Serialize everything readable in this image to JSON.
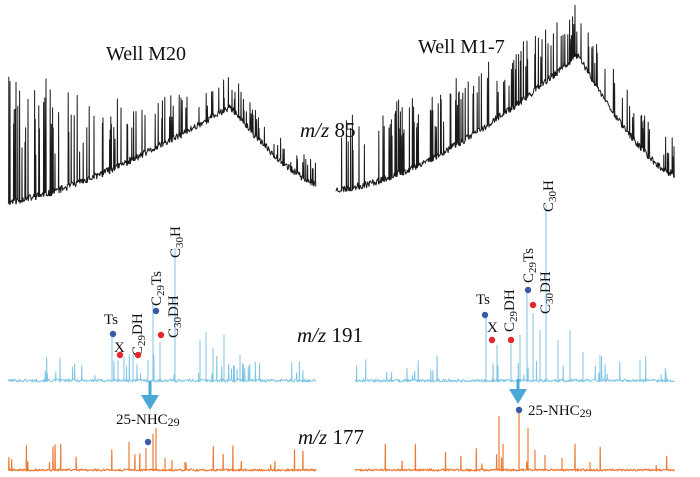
{
  "chart_data": {
    "type": "line",
    "title": "",
    "panels": [
      {
        "well": "Well M20",
        "ion_label": "m/z 85",
        "trace": "m/z 85",
        "color": "#1a1a1a"
      },
      {
        "well": "Well M1-7",
        "ion_label": "",
        "trace": "m/z 85",
        "color": "#1a1a1a"
      },
      {
        "well": "",
        "ion_label": "m/z 191",
        "trace": "m/z 191",
        "color": "#7cc4e4",
        "peaks": [
          {
            "name": "Ts",
            "marker": "blue"
          },
          {
            "name": "X",
            "marker": "red"
          },
          {
            "name": "C29DH",
            "marker": "red"
          },
          {
            "name": "C29Ts",
            "marker": "blue"
          },
          {
            "name": "C30DH",
            "marker": "red"
          },
          {
            "name": "C30H",
            "marker": "none"
          }
        ]
      },
      {
        "well": "",
        "ion_label": "",
        "trace": "m/z 191",
        "color": "#7cc4e4",
        "peaks": [
          {
            "name": "Ts",
            "marker": "blue"
          },
          {
            "name": "X",
            "marker": "red"
          },
          {
            "name": "C29DH",
            "marker": "red"
          },
          {
            "name": "C29Ts",
            "marker": "blue"
          },
          {
            "name": "C30DH",
            "marker": "red"
          },
          {
            "name": "C30H",
            "marker": "none"
          }
        ]
      },
      {
        "well": "",
        "ion_label": "m/z 177",
        "trace": "m/z 177",
        "color": "#ec7a33",
        "peaks": [
          {
            "name": "25-NHC29",
            "marker": "blue"
          }
        ]
      },
      {
        "well": "",
        "ion_label": "",
        "trace": "m/z 177",
        "color": "#ec7a33",
        "peaks": [
          {
            "name": "25-NHC29",
            "marker": "blue"
          }
        ]
      }
    ],
    "marker_colors": {
      "blue": "#3a5aa8",
      "red": "#e3262b",
      "arrow": "#4aa8d8"
    },
    "axes": "none",
    "grid": false,
    "legend": "none"
  }
}
